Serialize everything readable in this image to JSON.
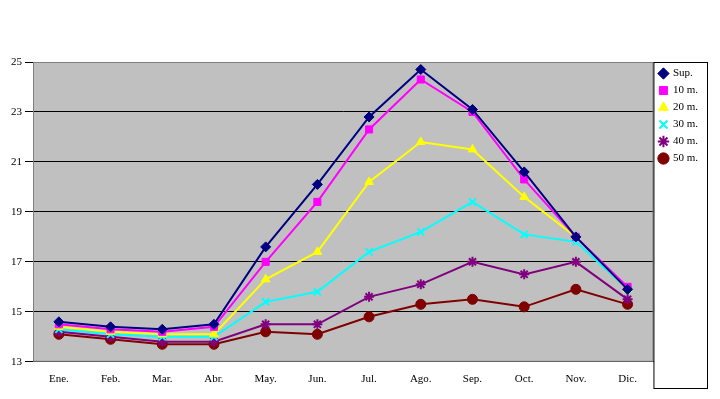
{
  "chart_data": {
    "type": "line",
    "categories": [
      "Ene.",
      "Feb.",
      "Mar.",
      "Abr.",
      "May.",
      "Jun.",
      "Jul.",
      "Ago.",
      "Sep.",
      "Oct.",
      "Nov.",
      "Dic."
    ],
    "series": [
      {
        "name": "Sup.",
        "color": "#000080",
        "marker": "diamond",
        "values": [
          14.6,
          14.4,
          14.3,
          14.5,
          17.6,
          20.1,
          22.8,
          24.7,
          23.1,
          20.6,
          18.0,
          15.9
        ]
      },
      {
        "name": "10 m.",
        "color": "#ff00ff",
        "marker": "square",
        "values": [
          14.5,
          14.3,
          14.2,
          14.4,
          17.0,
          19.4,
          22.3,
          24.3,
          23.0,
          20.3,
          18.0,
          16.0
        ]
      },
      {
        "name": "20 m.",
        "color": "#ffff00",
        "marker": "triangle",
        "values": [
          14.4,
          14.2,
          14.1,
          14.1,
          16.3,
          17.4,
          20.2,
          21.8,
          21.5,
          19.6,
          18.0,
          15.9
        ]
      },
      {
        "name": "30 m.",
        "color": "#00ffff",
        "marker": "x",
        "values": [
          14.3,
          14.1,
          14.0,
          14.0,
          15.4,
          15.8,
          17.4,
          18.2,
          19.4,
          18.1,
          17.8,
          15.9
        ]
      },
      {
        "name": "40 m.",
        "color": "#800080",
        "marker": "star",
        "values": [
          14.2,
          14.0,
          13.8,
          13.8,
          14.5,
          14.5,
          15.6,
          16.1,
          17.0,
          16.5,
          17.0,
          15.5
        ]
      },
      {
        "name": "50 m.",
        "color": "#800000",
        "marker": "circle",
        "values": [
          14.1,
          13.9,
          13.7,
          13.7,
          14.2,
          14.1,
          14.8,
          15.3,
          15.5,
          15.2,
          15.9,
          15.3
        ]
      }
    ],
    "ylim": [
      13,
      25
    ],
    "yticks": [
      13,
      15,
      17,
      19,
      21,
      23,
      25
    ],
    "grid": true,
    "legend": "right"
  }
}
